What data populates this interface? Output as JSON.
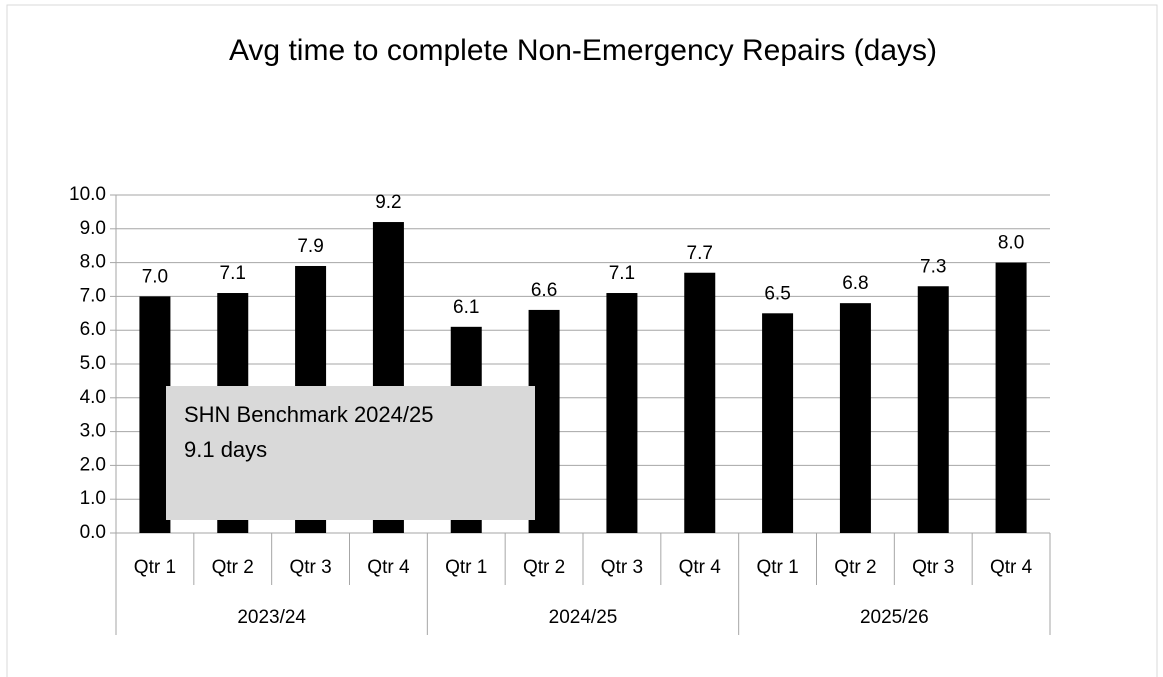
{
  "chart_data": {
    "type": "bar",
    "title": "Avg time to complete Non-Emergency Repairs (days)",
    "categories": [
      "Qtr 1",
      "Qtr 2",
      "Qtr 3",
      "Qtr 4",
      "Qtr 1",
      "Qtr 2",
      "Qtr 3",
      "Qtr 4",
      "Qtr 1",
      "Qtr 2",
      "Qtr 3",
      "Qtr 4"
    ],
    "category_groups": [
      "2023/24",
      "2024/25",
      "2025/26"
    ],
    "values": [
      7.0,
      7.1,
      7.9,
      9.2,
      6.1,
      6.6,
      7.1,
      7.7,
      6.5,
      6.8,
      7.3,
      8.0
    ],
    "value_labels": [
      "7.0",
      "7.1",
      "7.9",
      "9.2",
      "6.1",
      "6.6",
      "7.1",
      "7.7",
      "6.5",
      "6.8",
      "7.3",
      "8.0"
    ],
    "color": "#000000",
    "ylim": [
      0,
      10
    ],
    "yticks": [
      {
        "value": 0,
        "label": "0.0"
      },
      {
        "value": 1,
        "label": "1.0"
      },
      {
        "value": 2,
        "label": "2.0"
      },
      {
        "value": 3,
        "label": "3.0"
      },
      {
        "value": 4,
        "label": "4.0"
      },
      {
        "value": 5,
        "label": "5.0"
      },
      {
        "value": 6,
        "label": "6.0"
      },
      {
        "value": 7,
        "label": "7.0"
      },
      {
        "value": 8,
        "label": "8.0"
      },
      {
        "value": 9,
        "label": "9.0"
      },
      {
        "value": 10,
        "label": "10.0"
      }
    ],
    "grid": true,
    "annotation": [
      "SHN Benchmark 2024/25",
      "9.1 days"
    ]
  }
}
